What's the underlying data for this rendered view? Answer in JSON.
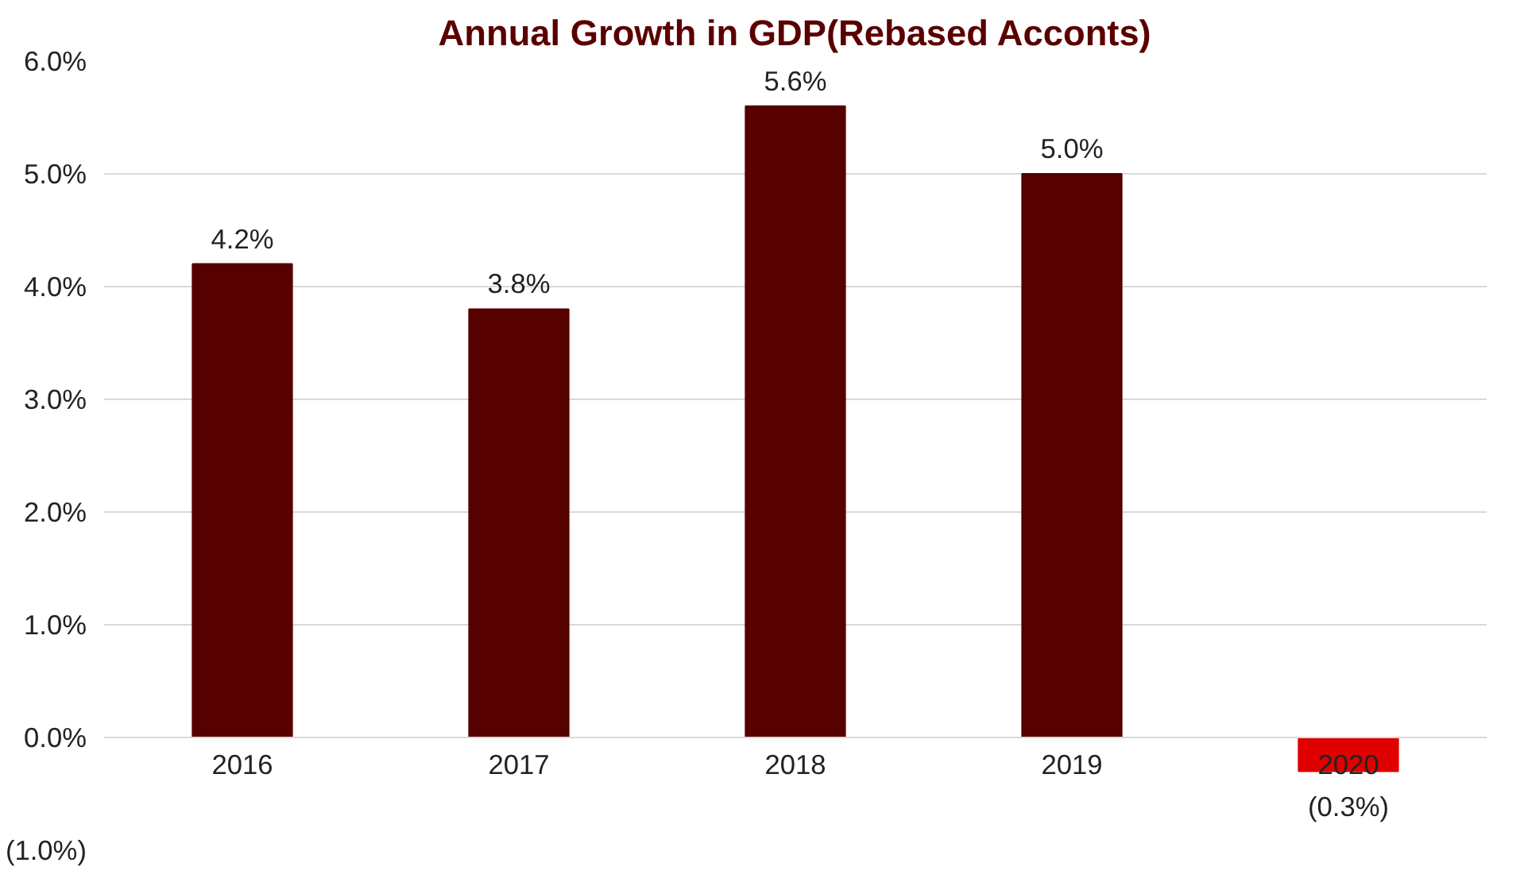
{
  "chart_data": {
    "type": "bar",
    "title": "Annual Growth in GDP(Rebased Acconts)",
    "categories": [
      "2016",
      "2017",
      "2018",
      "2019",
      "2020"
    ],
    "values": [
      4.2,
      3.8,
      5.6,
      5.0,
      -0.3
    ],
    "colors": [
      "#560000",
      "#560000",
      "#560000",
      "#560000",
      "#e00000"
    ],
    "value_labels": [
      "4.2%",
      "3.8%",
      "5.6%",
      "5.0%",
      "(0.3%)"
    ],
    "ylim": [
      -1.0,
      6.0
    ],
    "yticks": [
      {
        "value": -1.0,
        "label": "(1.0%)"
      },
      {
        "value": 0.0,
        "label": "0.0%"
      },
      {
        "value": 1.0,
        "label": "1.0%"
      },
      {
        "value": 2.0,
        "label": "2.0%"
      },
      {
        "value": 3.0,
        "label": "3.0%"
      },
      {
        "value": 4.0,
        "label": "4.0%"
      },
      {
        "value": 5.0,
        "label": "5.0%"
      },
      {
        "value": 6.0,
        "label": "6.0%"
      }
    ],
    "grid": "y"
  }
}
